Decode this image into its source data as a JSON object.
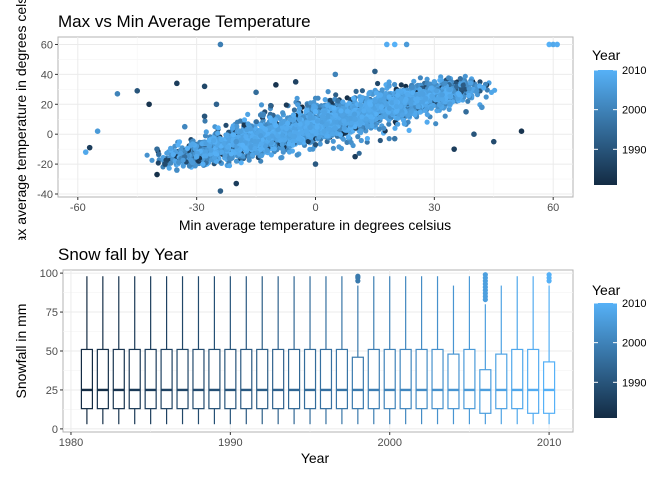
{
  "colors": {
    "low": "#132B43",
    "high": "#56B1F7",
    "panel_bg": "#ffffff",
    "panel_border": "#b3b3b3",
    "grid_major": "#ebebeb",
    "grid_minor": "#f5f5f5"
  },
  "chart_data": [
    {
      "type": "scatter",
      "title": "Max vs Min Average Temperature",
      "xlabel": "Min average temperature in degrees celsius",
      "ylabel": "Max average temperature in degrees celsius",
      "xlim": [
        -65,
        65
      ],
      "ylim": [
        -42,
        65
      ],
      "x_ticks": [
        -60,
        -30,
        0,
        30,
        60
      ],
      "y_ticks": [
        -40,
        -20,
        0,
        20,
        40,
        60
      ],
      "x_tick_labels": [
        "-60",
        "-30",
        "0",
        "30",
        "60"
      ],
      "y_tick_labels": [
        "-40",
        "-20",
        "0",
        "20",
        "40",
        "60"
      ],
      "grid": true,
      "color_by": "Year",
      "legend": {
        "title": "Year",
        "placement": "right",
        "min": 1981,
        "max": 2010,
        "breaks": [
          1990,
          2000,
          2010
        ],
        "labels": [
          "1990",
          "2000",
          "2010"
        ]
      },
      "points": [
        {
          "x": -58,
          "y": -12,
          "year": 2008
        },
        {
          "x": -57,
          "y": -9,
          "year": 1985
        },
        {
          "x": -55,
          "y": 2,
          "year": 2005
        },
        {
          "x": -50,
          "y": 27,
          "year": 2000
        },
        {
          "x": -45,
          "y": 29,
          "year": 1990
        },
        {
          "x": -42,
          "y": 20,
          "year": 1983
        },
        {
          "x": -40,
          "y": -10,
          "year": 1995
        },
        {
          "x": -35,
          "y": 34,
          "year": 1985
        },
        {
          "x": -28,
          "y": 32,
          "year": 1987
        },
        {
          "x": -24,
          "y": 60,
          "year": 1999
        },
        {
          "x": -24,
          "y": -38,
          "year": 1992
        },
        {
          "x": -20,
          "y": -33,
          "year": 1985
        },
        {
          "x": -40,
          "y": -27,
          "year": 1982
        },
        {
          "x": -38,
          "y": -20,
          "year": 1988
        },
        {
          "x": -35,
          "y": -24,
          "year": 2002
        },
        {
          "x": -30,
          "y": -15,
          "year": 2008
        },
        {
          "x": -33,
          "y": 5,
          "year": 2001
        },
        {
          "x": -28,
          "y": 12,
          "year": 1990
        },
        {
          "x": -15,
          "y": 28,
          "year": 1995
        },
        {
          "x": -10,
          "y": 33,
          "year": 1983
        },
        {
          "x": -5,
          "y": 35,
          "year": 1986
        },
        {
          "x": 5,
          "y": 40,
          "year": 2000
        },
        {
          "x": 15,
          "y": 42,
          "year": 1992
        },
        {
          "x": 18,
          "y": 60,
          "year": 2009
        },
        {
          "x": 20,
          "y": 60,
          "year": 2010
        },
        {
          "x": 23,
          "y": 60,
          "year": 2005
        },
        {
          "x": 35,
          "y": -10,
          "year": 1985
        },
        {
          "x": 38,
          "y": 15,
          "year": 1995
        },
        {
          "x": 40,
          "y": 0,
          "year": 1990
        },
        {
          "x": 42,
          "y": 18,
          "year": 2003
        },
        {
          "x": 45,
          "y": -5,
          "year": 1988
        },
        {
          "x": 52,
          "y": 2,
          "year": 1983
        },
        {
          "x": 59,
          "y": 60,
          "year": 2010
        },
        {
          "x": 60,
          "y": 60,
          "year": 2008
        },
        {
          "x": 61,
          "y": 60,
          "year": 2009
        },
        {
          "x": 10,
          "y": -15,
          "year": 1985
        },
        {
          "x": 20,
          "y": -3,
          "year": 1997
        },
        {
          "x": 30,
          "y": 35,
          "year": 2006
        },
        {
          "x": -20,
          "y": -5,
          "year": 2004
        },
        {
          "x": -25,
          "y": 20,
          "year": 1993
        },
        {
          "x": 0,
          "y": 15,
          "year": 2010
        },
        {
          "x": 0,
          "y": -20,
          "year": 1991
        },
        {
          "x": 10,
          "y": 10,
          "year": 2007
        }
      ],
      "cloud": {
        "description": "dense band of overlapping points",
        "center_x": [
          -35,
          38
        ],
        "center_y": [
          -18,
          33
        ],
        "spread": 13,
        "count": 2600
      }
    },
    {
      "type": "boxplot",
      "title": "Snow fall by Year",
      "xlabel": "Year",
      "ylabel": "Snowfall in mm",
      "xlim": [
        1979.5,
        2011.5
      ],
      "ylim": [
        -2,
        102
      ],
      "x_ticks": [
        1980,
        1990,
        2000,
        2010
      ],
      "y_ticks": [
        0,
        25,
        50,
        75,
        100
      ],
      "x_tick_labels": [
        "1980",
        "1990",
        "2000",
        "2010"
      ],
      "y_tick_labels": [
        "0",
        "25",
        "50",
        "75",
        "100"
      ],
      "grid": true,
      "color_by": "Year",
      "legend": {
        "title": "Year",
        "placement": "right",
        "min": 1981,
        "max": 2010,
        "breaks": [
          1990,
          2000,
          2010
        ],
        "labels": [
          "1990",
          "2000",
          "2010"
        ]
      },
      "boxes": [
        {
          "year": 1981,
          "min": 3,
          "q1": 13,
          "median": 25,
          "q3": 51,
          "max": 98
        },
        {
          "year": 1982,
          "min": 3,
          "q1": 13,
          "median": 25,
          "q3": 51,
          "max": 98
        },
        {
          "year": 1983,
          "min": 3,
          "q1": 13,
          "median": 25,
          "q3": 51,
          "max": 98
        },
        {
          "year": 1984,
          "min": 3,
          "q1": 13,
          "median": 25,
          "q3": 51,
          "max": 98
        },
        {
          "year": 1985,
          "min": 3,
          "q1": 13,
          "median": 25,
          "q3": 51,
          "max": 98
        },
        {
          "year": 1986,
          "min": 3,
          "q1": 13,
          "median": 25,
          "q3": 51,
          "max": 98
        },
        {
          "year": 1987,
          "min": 3,
          "q1": 13,
          "median": 25,
          "q3": 51,
          "max": 98
        },
        {
          "year": 1988,
          "min": 3,
          "q1": 13,
          "median": 25,
          "q3": 51,
          "max": 98
        },
        {
          "year": 1989,
          "min": 3,
          "q1": 13,
          "median": 25,
          "q3": 51,
          "max": 98
        },
        {
          "year": 1990,
          "min": 3,
          "q1": 13,
          "median": 25,
          "q3": 51,
          "max": 98
        },
        {
          "year": 1991,
          "min": 3,
          "q1": 13,
          "median": 25,
          "q3": 51,
          "max": 98
        },
        {
          "year": 1992,
          "min": 3,
          "q1": 13,
          "median": 25,
          "q3": 51,
          "max": 98
        },
        {
          "year": 1993,
          "min": 3,
          "q1": 13,
          "median": 25,
          "q3": 51,
          "max": 98
        },
        {
          "year": 1994,
          "min": 3,
          "q1": 13,
          "median": 25,
          "q3": 51,
          "max": 98
        },
        {
          "year": 1995,
          "min": 3,
          "q1": 13,
          "median": 25,
          "q3": 51,
          "max": 98
        },
        {
          "year": 1996,
          "min": 3,
          "q1": 13,
          "median": 25,
          "q3": 51,
          "max": 98
        },
        {
          "year": 1997,
          "min": 3,
          "q1": 13,
          "median": 25,
          "q3": 51,
          "max": 98
        },
        {
          "year": 1998,
          "min": 3,
          "q1": 13,
          "median": 25,
          "q3": 46,
          "max": 92,
          "outliers": [
            95,
            97,
            98
          ]
        },
        {
          "year": 1999,
          "min": 3,
          "q1": 13,
          "median": 25,
          "q3": 51,
          "max": 98
        },
        {
          "year": 2000,
          "min": 3,
          "q1": 13,
          "median": 25,
          "q3": 51,
          "max": 98
        },
        {
          "year": 2001,
          "min": 3,
          "q1": 13,
          "median": 25,
          "q3": 51,
          "max": 98
        },
        {
          "year": 2002,
          "min": 3,
          "q1": 13,
          "median": 25,
          "q3": 51,
          "max": 98
        },
        {
          "year": 2003,
          "min": 3,
          "q1": 13,
          "median": 25,
          "q3": 51,
          "max": 98
        },
        {
          "year": 2004,
          "min": 3,
          "q1": 13,
          "median": 25,
          "q3": 48,
          "max": 92
        },
        {
          "year": 2005,
          "min": 3,
          "q1": 13,
          "median": 25,
          "q3": 51,
          "max": 98
        },
        {
          "year": 2006,
          "min": 3,
          "q1": 10,
          "median": 25,
          "q3": 38,
          "max": 80,
          "outliers": [
            83,
            85,
            87,
            89,
            91,
            93,
            95,
            97,
            99
          ]
        },
        {
          "year": 2007,
          "min": 3,
          "q1": 13,
          "median": 25,
          "q3": 48,
          "max": 92
        },
        {
          "year": 2008,
          "min": 3,
          "q1": 13,
          "median": 25,
          "q3": 51,
          "max": 98
        },
        {
          "year": 2009,
          "min": 3,
          "q1": 10,
          "median": 25,
          "q3": 51,
          "max": 98
        },
        {
          "year": 2010,
          "min": 3,
          "q1": 10,
          "median": 25,
          "q3": 43,
          "max": 92,
          "outliers": [
            95,
            97,
            99
          ]
        }
      ]
    }
  ]
}
